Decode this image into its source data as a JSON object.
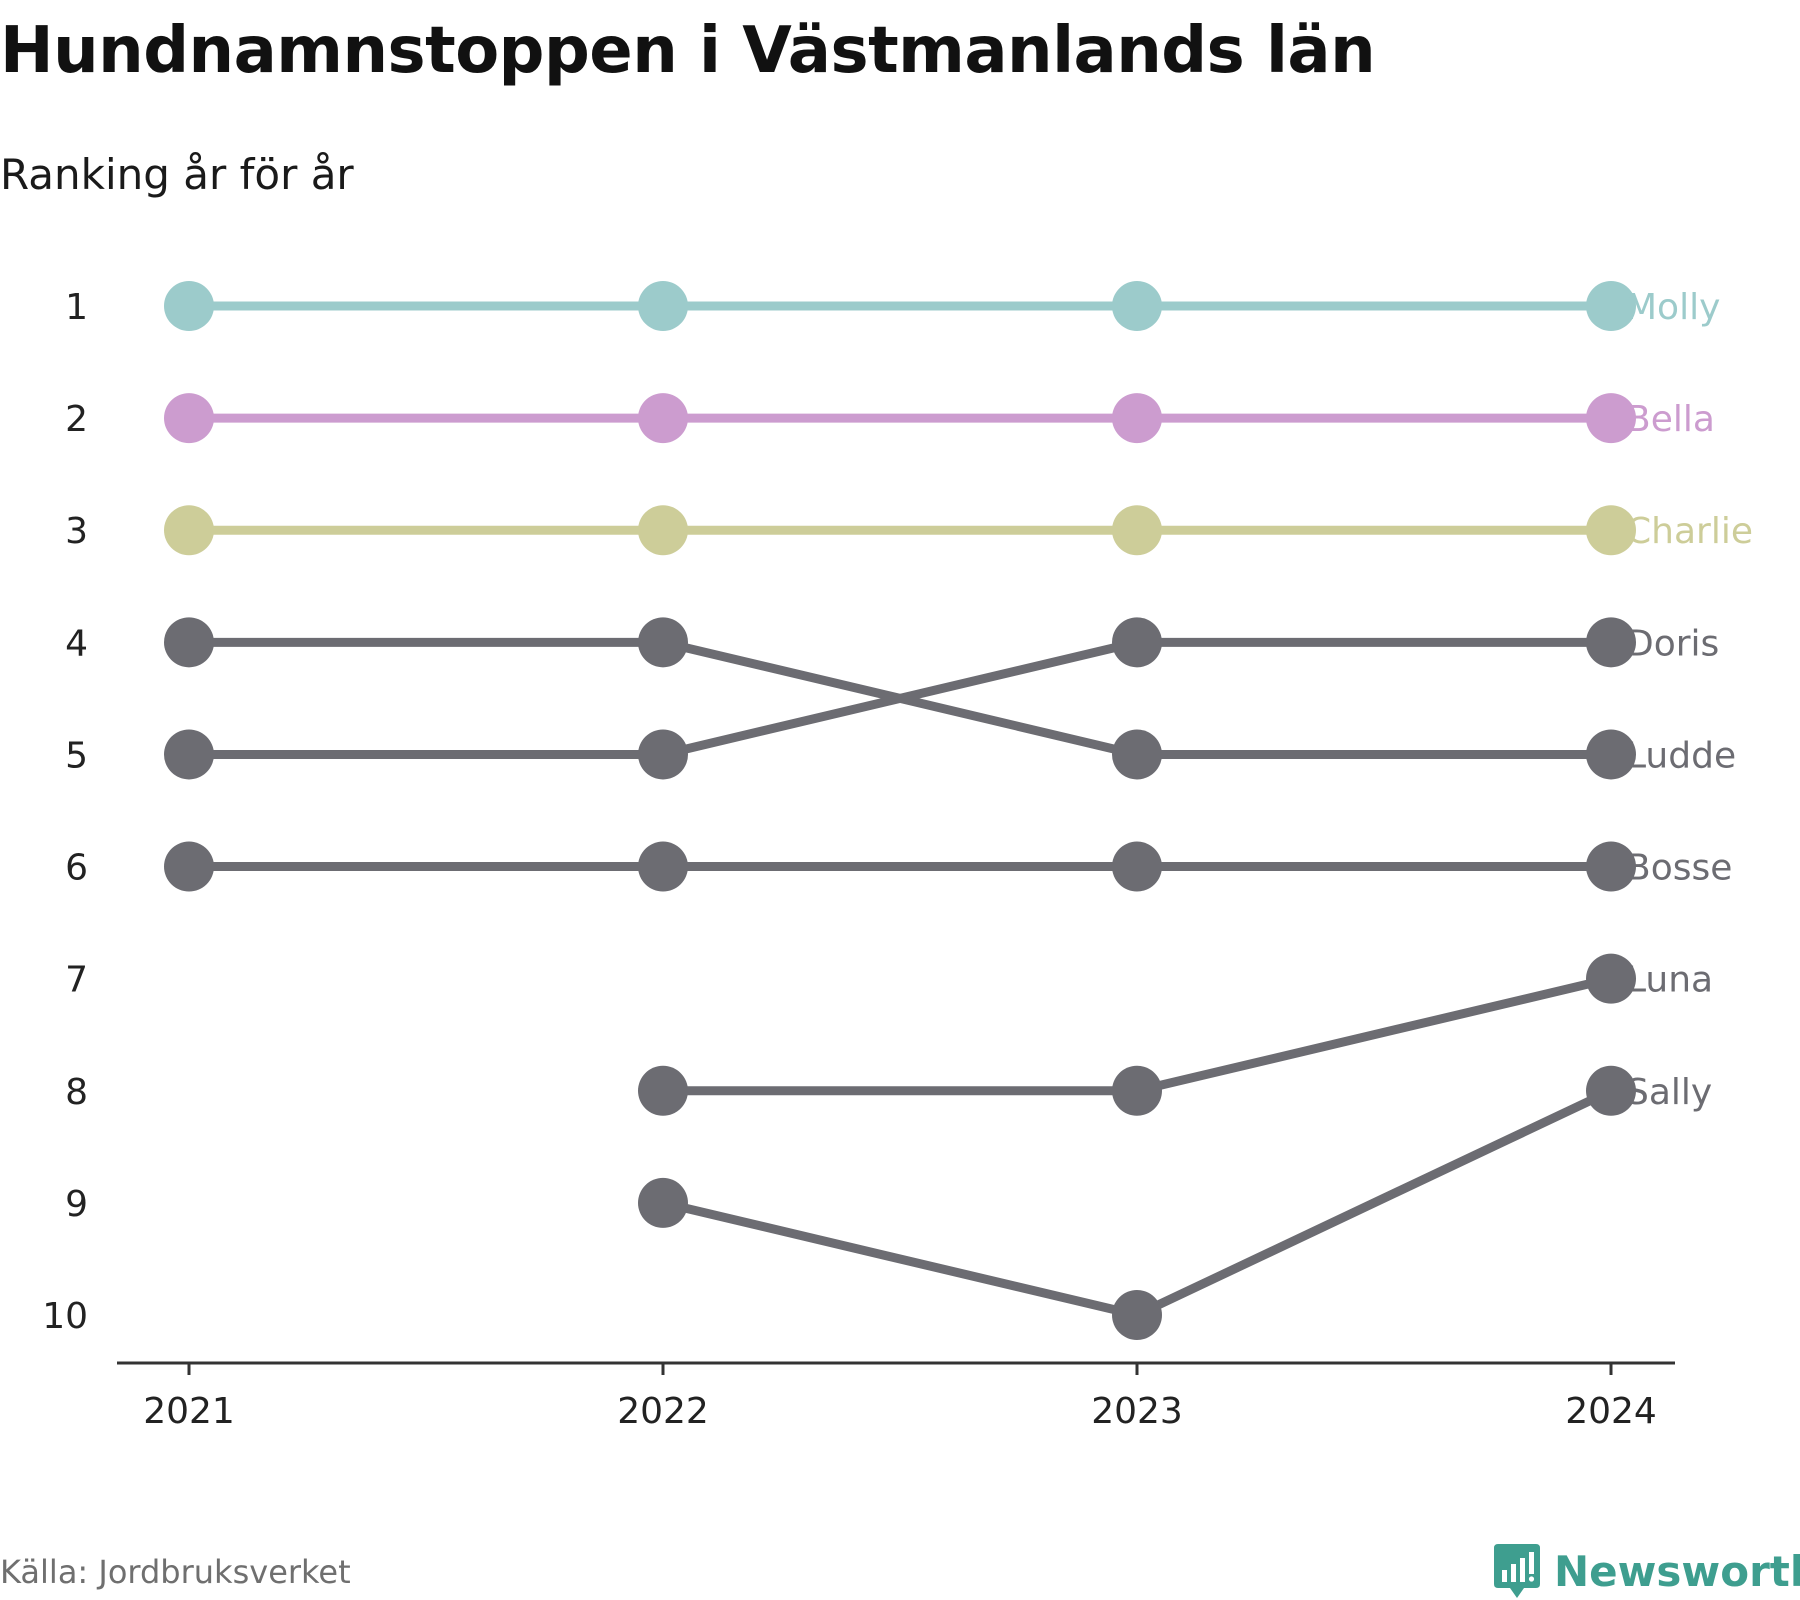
{
  "header": {
    "title": "Hundnamnstoppen i Västmanlands län",
    "subtitle": "Ranking år för år"
  },
  "footer": {
    "source": "Källa: Jordbruksverket",
    "brand": "Newsworthy",
    "brand_icon": "bar-chart-speech-icon",
    "brand_color": "#3e9e8f"
  },
  "chart_data": {
    "type": "line",
    "title": "Hundnamnstoppen i Västmanlands län",
    "subtitle": "Ranking år för år",
    "x": [
      "2021",
      "2022",
      "2023",
      "2024"
    ],
    "y_ticks": [
      1,
      2,
      3,
      4,
      5,
      6,
      7,
      8,
      9,
      10
    ],
    "ylim": [
      1,
      10
    ],
    "y_reversed": true,
    "grid": false,
    "legend": "direct labels right of last point",
    "series": [
      {
        "name": "Molly",
        "color": "#9ccbcb",
        "values": [
          1,
          1,
          1,
          1
        ]
      },
      {
        "name": "Bella",
        "color": "#cc9ccf",
        "values": [
          2,
          2,
          2,
          2
        ]
      },
      {
        "name": "Charlie",
        "color": "#cdcd99",
        "values": [
          3,
          3,
          3,
          3
        ]
      },
      {
        "name": "Doris",
        "color": "#6c6c72",
        "values": [
          5,
          5,
          4,
          4
        ]
      },
      {
        "name": "Ludde",
        "color": "#6c6c72",
        "values": [
          4,
          4,
          5,
          5
        ]
      },
      {
        "name": "Bosse",
        "color": "#6c6c72",
        "values": [
          6,
          6,
          6,
          6
        ]
      },
      {
        "name": "Luna",
        "color": "#6c6c72",
        "values": [
          null,
          8,
          8,
          7
        ]
      },
      {
        "name": "Sally",
        "color": "#6c6c72",
        "values": [
          null,
          9,
          10,
          8
        ]
      }
    ]
  }
}
